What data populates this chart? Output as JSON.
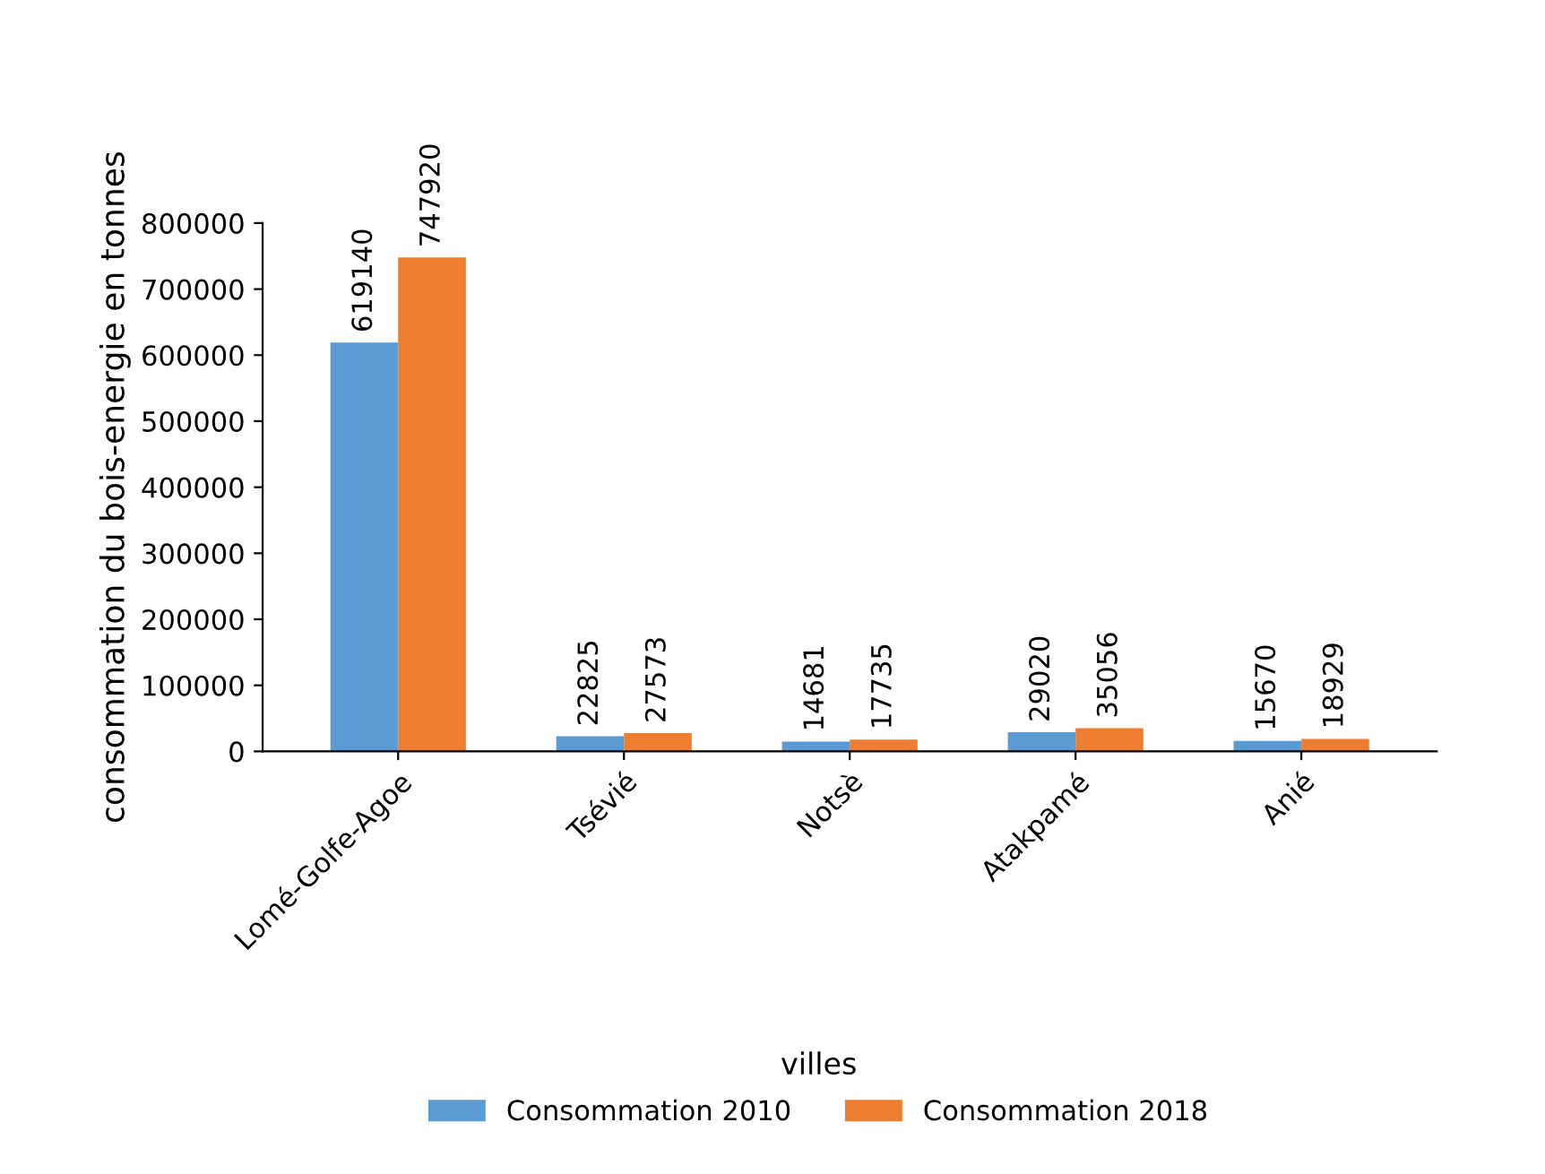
{
  "chart_data": {
    "type": "bar",
    "xlabel": "villes",
    "ylabel": "consommation du bois-energie en tonnes",
    "categories": [
      "Lomé-Golfe-Agoe",
      "Tsévié",
      "Notsè",
      "Atakpamé",
      "Anié"
    ],
    "series": [
      {
        "name": "Consommation 2010",
        "color": "#5b9bd5",
        "values": [
          619140,
          22825,
          14681,
          29020,
          15670
        ]
      },
      {
        "name": "Consommation 2018",
        "color": "#ed7d31",
        "values": [
          747920,
          27573,
          17735,
          35056,
          18929
        ]
      }
    ],
    "ylim": [
      0,
      800000
    ],
    "yticks": [
      0,
      100000,
      200000,
      300000,
      400000,
      500000,
      600000,
      700000,
      800000
    ],
    "data_labels": true,
    "grid": false,
    "legend": "bottom"
  }
}
